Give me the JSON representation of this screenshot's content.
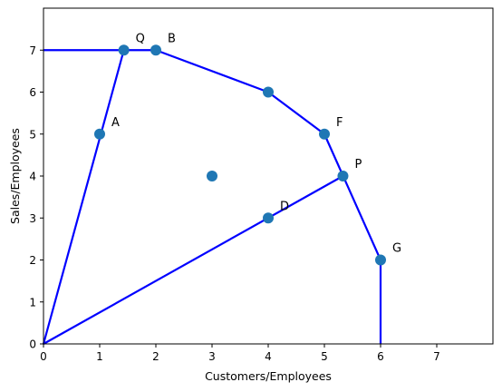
{
  "chart_data": {
    "type": "scatter",
    "title": "",
    "xlabel": "Customers/Employees",
    "ylabel": "Sales/Employees",
    "xlim": [
      0,
      8
    ],
    "ylim": [
      0,
      8
    ],
    "xticks": [
      "0",
      "1",
      "2",
      "3",
      "4",
      "5",
      "6",
      "7"
    ],
    "yticks": [
      "0",
      "1",
      "2",
      "3",
      "4",
      "5",
      "6",
      "7"
    ],
    "grid": false,
    "points": [
      {
        "label": "Q",
        "x": 1.43,
        "y": 7
      },
      {
        "label": "B",
        "x": 2,
        "y": 7
      },
      {
        "label": "A",
        "x": 1,
        "y": 5
      },
      {
        "label": "F",
        "x": 5,
        "y": 5
      },
      {
        "label": "P",
        "x": 5.33,
        "y": 4
      },
      {
        "label": "D",
        "x": 4,
        "y": 3
      },
      {
        "label": "G",
        "x": 6,
        "y": 2
      },
      {
        "label": "",
        "x": 4,
        "y": 6
      },
      {
        "label": "",
        "x": 3,
        "y": 4
      }
    ],
    "frontier": [
      [
        0,
        7
      ],
      [
        2,
        7
      ],
      [
        4,
        6
      ],
      [
        5,
        5
      ],
      [
        6,
        2
      ],
      [
        6,
        0
      ]
    ],
    "rays": [
      [
        [
          0,
          0
        ],
        [
          1.43,
          7
        ]
      ],
      [
        [
          0,
          0
        ],
        [
          5.33,
          4
        ]
      ]
    ],
    "colors": {
      "line": "#0000ff",
      "marker": "#1f77b4"
    }
  }
}
